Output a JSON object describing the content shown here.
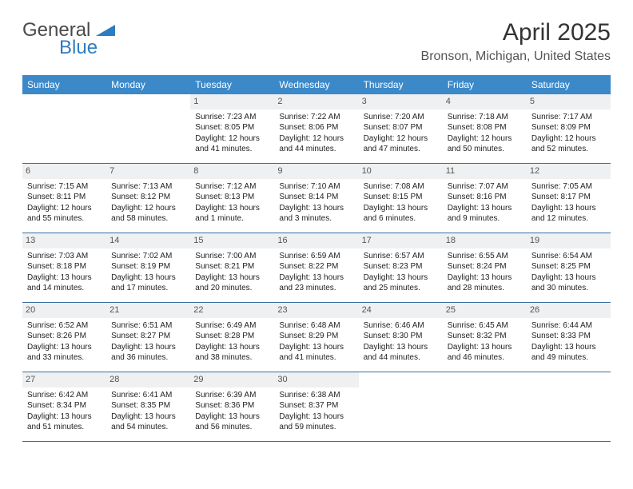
{
  "logo": {
    "text1": "General",
    "text2": "Blue",
    "shape_color": "#2f7bbf",
    "text1_color": "#4a4a4a"
  },
  "title": "April 2025",
  "location": "Bronson, Michigan, United States",
  "colors": {
    "header_bg": "#3b89c9",
    "header_text": "#ffffff",
    "daynum_bg": "#eef0f2",
    "row_border": "#3b6fa0",
    "body_text": "#222222"
  },
  "weekdays": [
    "Sunday",
    "Monday",
    "Tuesday",
    "Wednesday",
    "Thursday",
    "Friday",
    "Saturday"
  ],
  "weeks": [
    [
      {
        "empty": true
      },
      {
        "empty": true
      },
      {
        "day": "1",
        "sunrise": "Sunrise: 7:23 AM",
        "sunset": "Sunset: 8:05 PM",
        "daylight1": "Daylight: 12 hours",
        "daylight2": "and 41 minutes."
      },
      {
        "day": "2",
        "sunrise": "Sunrise: 7:22 AM",
        "sunset": "Sunset: 8:06 PM",
        "daylight1": "Daylight: 12 hours",
        "daylight2": "and 44 minutes."
      },
      {
        "day": "3",
        "sunrise": "Sunrise: 7:20 AM",
        "sunset": "Sunset: 8:07 PM",
        "daylight1": "Daylight: 12 hours",
        "daylight2": "and 47 minutes."
      },
      {
        "day": "4",
        "sunrise": "Sunrise: 7:18 AM",
        "sunset": "Sunset: 8:08 PM",
        "daylight1": "Daylight: 12 hours",
        "daylight2": "and 50 minutes."
      },
      {
        "day": "5",
        "sunrise": "Sunrise: 7:17 AM",
        "sunset": "Sunset: 8:09 PM",
        "daylight1": "Daylight: 12 hours",
        "daylight2": "and 52 minutes."
      }
    ],
    [
      {
        "day": "6",
        "sunrise": "Sunrise: 7:15 AM",
        "sunset": "Sunset: 8:11 PM",
        "daylight1": "Daylight: 12 hours",
        "daylight2": "and 55 minutes."
      },
      {
        "day": "7",
        "sunrise": "Sunrise: 7:13 AM",
        "sunset": "Sunset: 8:12 PM",
        "daylight1": "Daylight: 12 hours",
        "daylight2": "and 58 minutes."
      },
      {
        "day": "8",
        "sunrise": "Sunrise: 7:12 AM",
        "sunset": "Sunset: 8:13 PM",
        "daylight1": "Daylight: 13 hours",
        "daylight2": "and 1 minute."
      },
      {
        "day": "9",
        "sunrise": "Sunrise: 7:10 AM",
        "sunset": "Sunset: 8:14 PM",
        "daylight1": "Daylight: 13 hours",
        "daylight2": "and 3 minutes."
      },
      {
        "day": "10",
        "sunrise": "Sunrise: 7:08 AM",
        "sunset": "Sunset: 8:15 PM",
        "daylight1": "Daylight: 13 hours",
        "daylight2": "and 6 minutes."
      },
      {
        "day": "11",
        "sunrise": "Sunrise: 7:07 AM",
        "sunset": "Sunset: 8:16 PM",
        "daylight1": "Daylight: 13 hours",
        "daylight2": "and 9 minutes."
      },
      {
        "day": "12",
        "sunrise": "Sunrise: 7:05 AM",
        "sunset": "Sunset: 8:17 PM",
        "daylight1": "Daylight: 13 hours",
        "daylight2": "and 12 minutes."
      }
    ],
    [
      {
        "day": "13",
        "sunrise": "Sunrise: 7:03 AM",
        "sunset": "Sunset: 8:18 PM",
        "daylight1": "Daylight: 13 hours",
        "daylight2": "and 14 minutes."
      },
      {
        "day": "14",
        "sunrise": "Sunrise: 7:02 AM",
        "sunset": "Sunset: 8:19 PM",
        "daylight1": "Daylight: 13 hours",
        "daylight2": "and 17 minutes."
      },
      {
        "day": "15",
        "sunrise": "Sunrise: 7:00 AM",
        "sunset": "Sunset: 8:21 PM",
        "daylight1": "Daylight: 13 hours",
        "daylight2": "and 20 minutes."
      },
      {
        "day": "16",
        "sunrise": "Sunrise: 6:59 AM",
        "sunset": "Sunset: 8:22 PM",
        "daylight1": "Daylight: 13 hours",
        "daylight2": "and 23 minutes."
      },
      {
        "day": "17",
        "sunrise": "Sunrise: 6:57 AM",
        "sunset": "Sunset: 8:23 PM",
        "daylight1": "Daylight: 13 hours",
        "daylight2": "and 25 minutes."
      },
      {
        "day": "18",
        "sunrise": "Sunrise: 6:55 AM",
        "sunset": "Sunset: 8:24 PM",
        "daylight1": "Daylight: 13 hours",
        "daylight2": "and 28 minutes."
      },
      {
        "day": "19",
        "sunrise": "Sunrise: 6:54 AM",
        "sunset": "Sunset: 8:25 PM",
        "daylight1": "Daylight: 13 hours",
        "daylight2": "and 30 minutes."
      }
    ],
    [
      {
        "day": "20",
        "sunrise": "Sunrise: 6:52 AM",
        "sunset": "Sunset: 8:26 PM",
        "daylight1": "Daylight: 13 hours",
        "daylight2": "and 33 minutes."
      },
      {
        "day": "21",
        "sunrise": "Sunrise: 6:51 AM",
        "sunset": "Sunset: 8:27 PM",
        "daylight1": "Daylight: 13 hours",
        "daylight2": "and 36 minutes."
      },
      {
        "day": "22",
        "sunrise": "Sunrise: 6:49 AM",
        "sunset": "Sunset: 8:28 PM",
        "daylight1": "Daylight: 13 hours",
        "daylight2": "and 38 minutes."
      },
      {
        "day": "23",
        "sunrise": "Sunrise: 6:48 AM",
        "sunset": "Sunset: 8:29 PM",
        "daylight1": "Daylight: 13 hours",
        "daylight2": "and 41 minutes."
      },
      {
        "day": "24",
        "sunrise": "Sunrise: 6:46 AM",
        "sunset": "Sunset: 8:30 PM",
        "daylight1": "Daylight: 13 hours",
        "daylight2": "and 44 minutes."
      },
      {
        "day": "25",
        "sunrise": "Sunrise: 6:45 AM",
        "sunset": "Sunset: 8:32 PM",
        "daylight1": "Daylight: 13 hours",
        "daylight2": "and 46 minutes."
      },
      {
        "day": "26",
        "sunrise": "Sunrise: 6:44 AM",
        "sunset": "Sunset: 8:33 PM",
        "daylight1": "Daylight: 13 hours",
        "daylight2": "and 49 minutes."
      }
    ],
    [
      {
        "day": "27",
        "sunrise": "Sunrise: 6:42 AM",
        "sunset": "Sunset: 8:34 PM",
        "daylight1": "Daylight: 13 hours",
        "daylight2": "and 51 minutes."
      },
      {
        "day": "28",
        "sunrise": "Sunrise: 6:41 AM",
        "sunset": "Sunset: 8:35 PM",
        "daylight1": "Daylight: 13 hours",
        "daylight2": "and 54 minutes."
      },
      {
        "day": "29",
        "sunrise": "Sunrise: 6:39 AM",
        "sunset": "Sunset: 8:36 PM",
        "daylight1": "Daylight: 13 hours",
        "daylight2": "and 56 minutes."
      },
      {
        "day": "30",
        "sunrise": "Sunrise: 6:38 AM",
        "sunset": "Sunset: 8:37 PM",
        "daylight1": "Daylight: 13 hours",
        "daylight2": "and 59 minutes."
      },
      {
        "empty": true
      },
      {
        "empty": true
      },
      {
        "empty": true
      }
    ]
  ]
}
